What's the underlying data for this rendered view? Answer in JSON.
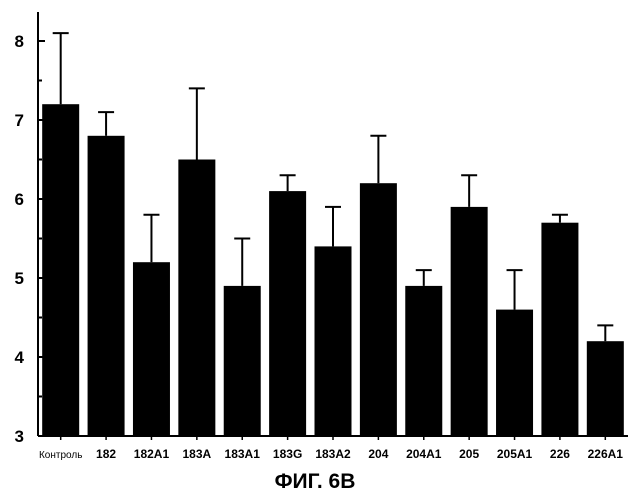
{
  "caption": "ФИГ. 6В",
  "chart_data": {
    "type": "bar",
    "categories": [
      "Контроль",
      "182",
      "182А1",
      "183А",
      "183А1",
      "183G",
      "183А2",
      "204",
      "204А1",
      "205",
      "205А1",
      "226",
      "226А1"
    ],
    "values": [
      7.2,
      6.8,
      5.2,
      6.5,
      4.9,
      6.1,
      5.4,
      6.2,
      4.9,
      5.9,
      4.6,
      5.7,
      4.2
    ],
    "error": [
      0.9,
      0.3,
      0.6,
      0.9,
      0.6,
      0.2,
      0.5,
      0.6,
      0.2,
      0.4,
      0.5,
      0.1,
      0.2
    ],
    "yticks": [
      "3",
      "4",
      "5",
      "6",
      "7",
      "8"
    ],
    "ylim": [
      3,
      8.4
    ],
    "title": "",
    "xlabel": "",
    "ylabel": "",
    "bar_color": "#000000",
    "grid": false
  }
}
